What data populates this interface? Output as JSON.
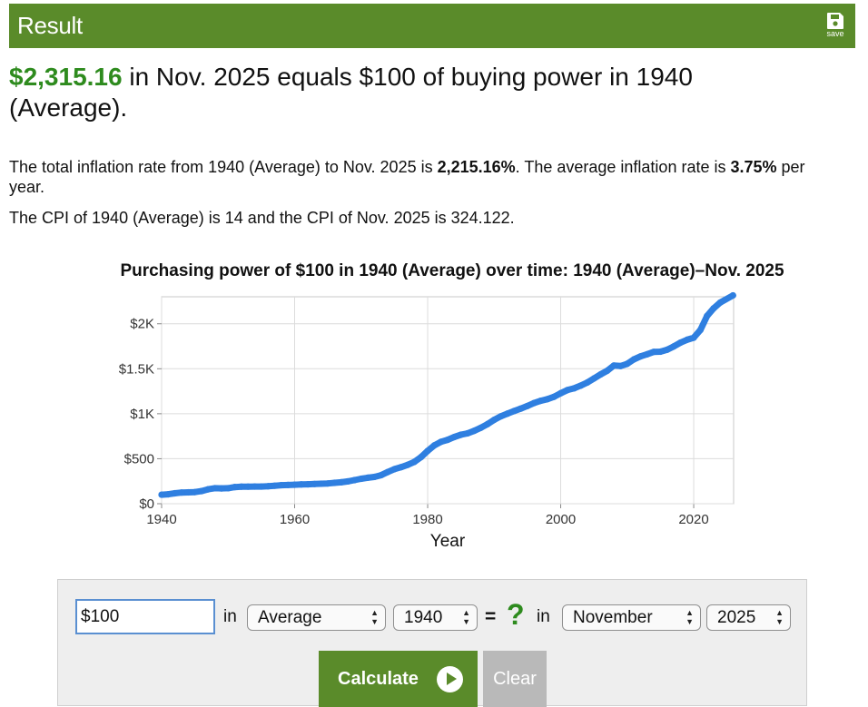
{
  "header": {
    "title": "Result",
    "save_label": "save",
    "save_icon": "floppy-disk-icon",
    "bar_color": "#5a8b2a"
  },
  "headline": {
    "amount": "$2,315.16",
    "rest": " in Nov. 2025 equals $100 of buying power in 1940 (Average)."
  },
  "summary": {
    "p1_a": "The total inflation rate from 1940 (Average) to Nov. 2025 is ",
    "p1_rate": "2,215.16%",
    "p1_b": ". The average inflation rate is ",
    "p1_avg": "3.75%",
    "p1_c": " per year.",
    "p2": "The CPI of 1940 (Average) is 14 and the CPI of Nov. 2025 is 324.122."
  },
  "chart_data": {
    "type": "line",
    "title": "Purchasing power of $100 in 1940 (Average) over time: 1940 (Average)–Nov. 2025",
    "xlabel": "Year",
    "ylabel": "",
    "xlim": [
      1940,
      2026
    ],
    "ylim": [
      0,
      2300
    ],
    "x_ticks": [
      1940,
      1960,
      1980,
      2000,
      2020
    ],
    "y_ticks": [
      0,
      500,
      1000,
      1500,
      2000
    ],
    "y_tick_labels": [
      "$0",
      "$500",
      "$1K",
      "$1.5K",
      "$2K"
    ],
    "grid": true,
    "series_color": "#2f7fe0",
    "series": [
      {
        "x": [
          1940,
          1941,
          1942,
          1943,
          1944,
          1945,
          1946,
          1947,
          1948,
          1949,
          1950,
          1951,
          1952,
          1953,
          1954,
          1955,
          1956,
          1957,
          1958,
          1959,
          1960,
          1961,
          1962,
          1963,
          1964,
          1965,
          1966,
          1967,
          1968,
          1969,
          1970,
          1971,
          1972,
          1973,
          1974,
          1975,
          1976,
          1977,
          1978,
          1979,
          1980,
          1981,
          1982,
          1983,
          1984,
          1985,
          1986,
          1987,
          1988,
          1989,
          1990,
          1991,
          1992,
          1993,
          1994,
          1995,
          1996,
          1997,
          1998,
          1999,
          2000,
          2001,
          2002,
          2003,
          2004,
          2005,
          2006,
          2007,
          2008,
          2009,
          2010,
          2011,
          2012,
          2013,
          2014,
          2015,
          2016,
          2017,
          2018,
          2019,
          2020,
          2021,
          2022,
          2023,
          2024,
          2025.9
        ],
        "values": [
          100,
          105,
          116,
          124,
          126,
          129,
          140,
          160,
          172,
          170,
          172,
          185,
          189,
          190,
          191,
          191,
          194,
          200,
          206,
          208,
          211,
          214,
          216,
          219,
          222,
          225,
          232,
          238,
          248,
          262,
          277,
          289,
          298,
          317,
          352,
          384,
          406,
          432,
          465,
          518,
          587,
          648,
          688,
          710,
          741,
          767,
          782,
          810,
          844,
          885,
          932,
          971,
          1001,
          1030,
          1057,
          1086,
          1119,
          1144,
          1162,
          1188,
          1228,
          1263,
          1282,
          1312,
          1347,
          1392,
          1437,
          1478,
          1535,
          1530,
          1555,
          1604,
          1637,
          1661,
          1688,
          1690,
          1711,
          1748,
          1790,
          1822,
          1845,
          1931,
          2086,
          2172,
          2236,
          2315
        ]
      }
    ]
  },
  "form": {
    "amount_value": "$100",
    "in_label_1": "in",
    "period_selected": "Average",
    "from_year": "1940",
    "equals": "=",
    "question": "?",
    "in_label_2": "in",
    "to_month": "November",
    "to_year": "2025",
    "calculate_label": "Calculate",
    "clear_label": "Clear",
    "play_icon": "play-icon"
  }
}
